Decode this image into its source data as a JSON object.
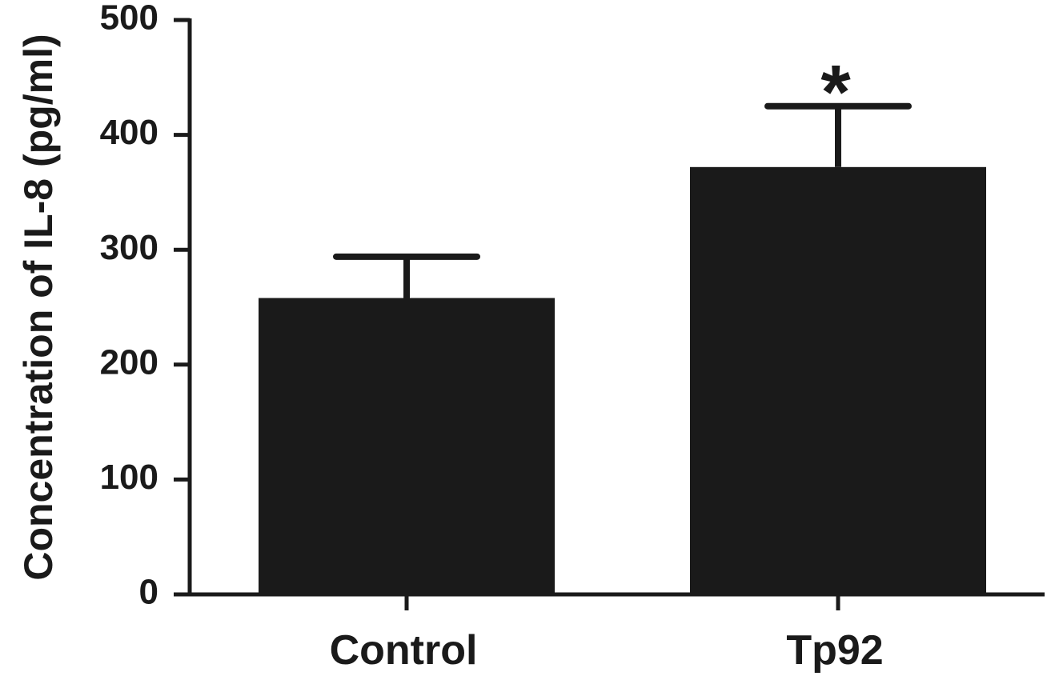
{
  "chart_data": {
    "type": "bar",
    "ylabel": "Concentration of IL-8 (pg/ml)",
    "ylim": [
      0,
      500
    ],
    "yticks": [
      0,
      100,
      200,
      300,
      400,
      500
    ],
    "categories": [
      "Control",
      "Tp92"
    ],
    "values": [
      258,
      372
    ],
    "error_upper": [
      294,
      425
    ],
    "annotations": [
      "",
      "*"
    ],
    "bar_color": "#1a1a1a",
    "grid": false,
    "legend": "none"
  }
}
